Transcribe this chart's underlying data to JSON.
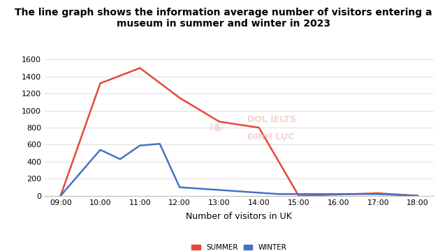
{
  "title": "The line graph shows the information average number of visitors entering a\nmuseum in summer and winter in 2023",
  "xlabel": "Number of visitors in UK",
  "x_labels": [
    "09:00",
    "10:00",
    "11:00",
    "12:00",
    "13:00",
    "14:00",
    "15:00",
    "16:00",
    "17:00",
    "18:00"
  ],
  "summer_data": [
    [
      9,
      0
    ],
    [
      10,
      1320
    ],
    [
      11,
      1500
    ],
    [
      12,
      1150
    ],
    [
      13,
      870
    ],
    [
      14,
      800
    ],
    [
      15,
      0
    ],
    [
      17,
      30
    ],
    [
      18,
      0
    ]
  ],
  "winter_data": [
    [
      9,
      0
    ],
    [
      10,
      540
    ],
    [
      10.5,
      430
    ],
    [
      11,
      590
    ],
    [
      11.5,
      610
    ],
    [
      12,
      100
    ],
    [
      14.5,
      20
    ],
    [
      16,
      20
    ],
    [
      17,
      20
    ],
    [
      18,
      0
    ]
  ],
  "summer_color": "#e8463a",
  "winter_color": "#4472c4",
  "ylim": [
    0,
    1650
  ],
  "yticks": [
    0,
    200,
    400,
    600,
    800,
    1000,
    1200,
    1400,
    1600
  ],
  "background_color": "#ffffff",
  "title_fontsize": 10,
  "tick_fontsize": 8,
  "xlabel_fontsize": 9,
  "legend_labels": [
    "SUMMER",
    "WINTER"
  ],
  "legend_fontsize": 7.5,
  "watermark_line1": "DOL IELTS",
  "watermark_line2": "ĐINH LỰC",
  "grid_color": "#dddddd"
}
